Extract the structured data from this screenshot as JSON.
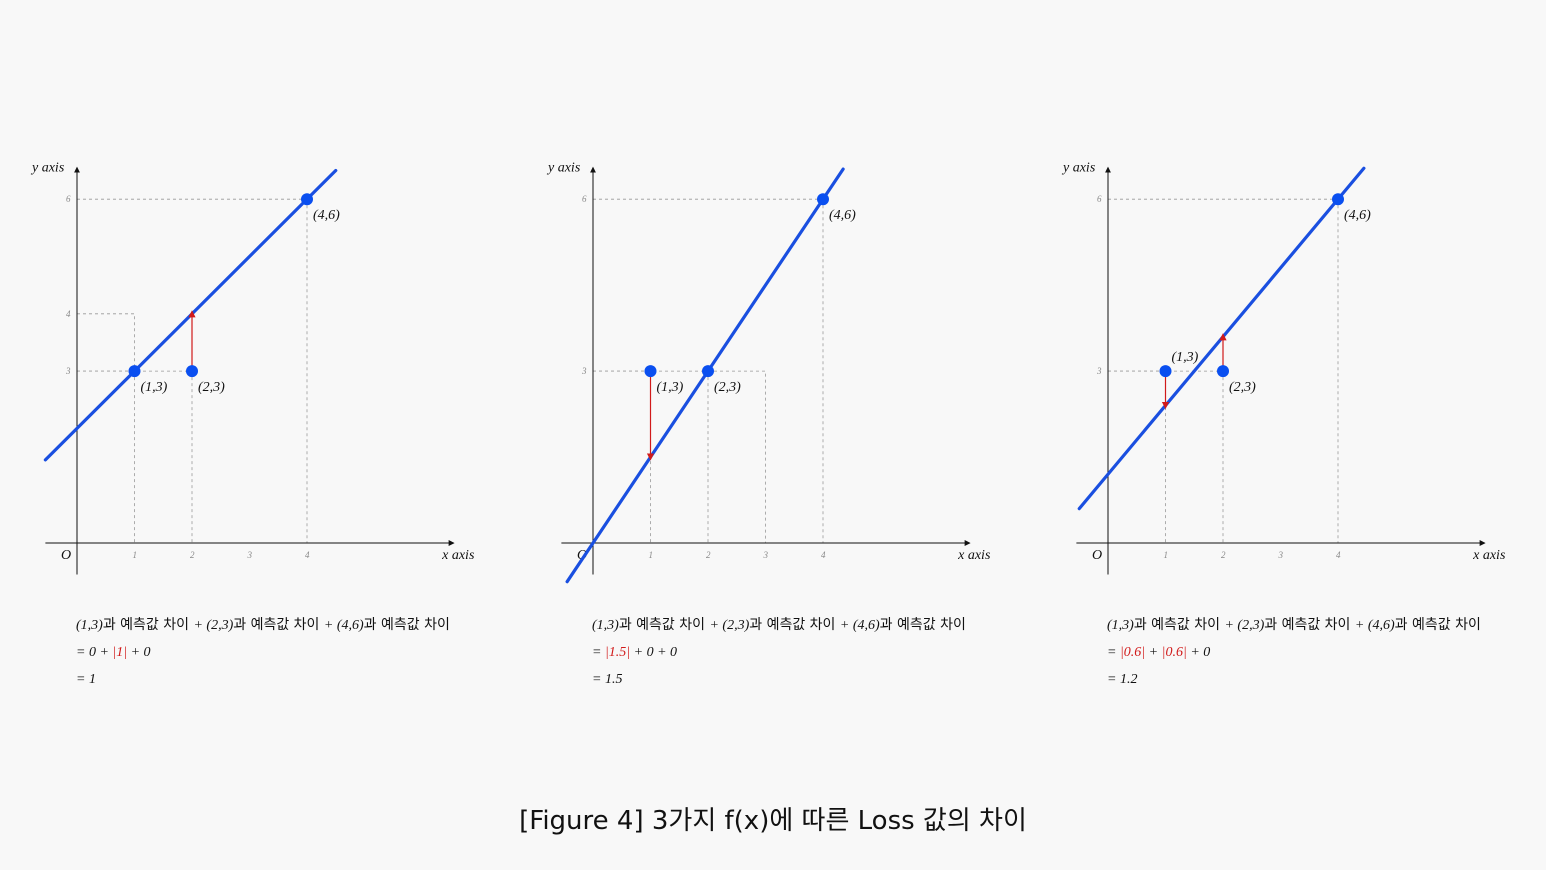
{
  "caption": "[Figure 4] 3가지 f(x)에 따른 Loss 값의 차이",
  "colors": {
    "line": "#1a4fe0",
    "point": "#0a4ff0",
    "arrow": "#d11a1a",
    "grid": "#999999"
  },
  "chart_data": [
    {
      "type": "line",
      "xlabel": "x axis",
      "ylabel": "y axis",
      "origin_label": "O",
      "xlim": [
        -0.55,
        6.55
      ],
      "ylim": [
        -0.55,
        6.55
      ],
      "grid": false,
      "x_ticks": [
        "1",
        "2",
        "3",
        "4"
      ],
      "y_ticks": [
        "3",
        "4",
        "6"
      ],
      "points": [
        {
          "x": 1,
          "y": 3,
          "label": "(1,3)"
        },
        {
          "x": 2,
          "y": 3,
          "label": "(2,3)"
        },
        {
          "x": 4,
          "y": 6,
          "label": "(4,6)"
        }
      ],
      "fitted_line": {
        "slope": 1,
        "intercept": 2,
        "x_range": [
          -0.55,
          4.5
        ]
      },
      "residual_arrows": [
        {
          "x": 2,
          "from": 3,
          "to": 4
        }
      ],
      "equation": {
        "line1": [
          {
            "t": "(1,3)",
            "s": "it"
          },
          {
            "t": "과 예측값 차이 ",
            "s": "ko"
          },
          {
            "t": "+ ",
            "s": "it"
          },
          {
            "t": "(2,3)",
            "s": "it"
          },
          {
            "t": "과 예측값 차이 ",
            "s": "ko"
          },
          {
            "t": "+ ",
            "s": "it"
          },
          {
            "t": "(4,6)",
            "s": "it"
          },
          {
            "t": "과 예측값 차이",
            "s": "ko"
          }
        ],
        "line2": [
          {
            "t": "= 0 + ",
            "s": "it"
          },
          {
            "t": "|1|",
            "s": "red"
          },
          {
            "t": " + 0",
            "s": "it"
          }
        ],
        "line3": "= 1"
      }
    },
    {
      "type": "line",
      "xlabel": "x axis",
      "ylabel": "y axis",
      "origin_label": "O",
      "xlim": [
        -0.55,
        6.55
      ],
      "ylim": [
        -0.55,
        6.55
      ],
      "grid": false,
      "x_ticks": [
        "1",
        "2",
        "3",
        "4"
      ],
      "y_ticks": [
        "3",
        "6"
      ],
      "points": [
        {
          "x": 1,
          "y": 3,
          "label": "(1,3)"
        },
        {
          "x": 2,
          "y": 3,
          "label": "(2,3)"
        },
        {
          "x": 4,
          "y": 6,
          "label": "(4,6)"
        }
      ],
      "fitted_line": {
        "slope": 1.5,
        "intercept": 0,
        "x_range": [
          -0.45,
          4.35
        ]
      },
      "residual_arrows": [
        {
          "x": 1,
          "from": 3,
          "to": 1.5
        }
      ],
      "equation": {
        "line1": [
          {
            "t": "(1,3)",
            "s": "it"
          },
          {
            "t": "과 예측값 차이 ",
            "s": "ko"
          },
          {
            "t": "+ ",
            "s": "it"
          },
          {
            "t": "(2,3)",
            "s": "it"
          },
          {
            "t": "과 예측값 차이 ",
            "s": "ko"
          },
          {
            "t": "+ ",
            "s": "it"
          },
          {
            "t": "(4,6)",
            "s": "it"
          },
          {
            "t": "과 예측값 차이",
            "s": "ko"
          }
        ],
        "line2": [
          {
            "t": "= ",
            "s": "it"
          },
          {
            "t": "|1.5|",
            "s": "red"
          },
          {
            "t": " + 0 + 0",
            "s": "it"
          }
        ],
        "line3": "= 1.5"
      }
    },
    {
      "type": "line",
      "xlabel": "x axis",
      "ylabel": "y axis",
      "origin_label": "O",
      "xlim": [
        -0.55,
        6.55
      ],
      "ylim": [
        -0.55,
        6.55
      ],
      "grid": false,
      "x_ticks": [
        "1",
        "2",
        "3",
        "4"
      ],
      "y_ticks": [
        "3",
        "6"
      ],
      "points": [
        {
          "x": 1,
          "y": 3,
          "label": "(1,3)"
        },
        {
          "x": 2,
          "y": 3,
          "label": "(2,3)"
        },
        {
          "x": 4,
          "y": 6,
          "label": "(4,6)"
        }
      ],
      "fitted_line": {
        "slope": 1.2,
        "intercept": 1.2,
        "x_range": [
          -0.5,
          4.45
        ]
      },
      "residual_arrows": [
        {
          "x": 1,
          "from": 3,
          "to": 2.4
        },
        {
          "x": 2,
          "from": 3,
          "to": 3.6
        }
      ],
      "equation": {
        "line1": [
          {
            "t": "(1,3)",
            "s": "it"
          },
          {
            "t": "과 예측값 차이 ",
            "s": "ko"
          },
          {
            "t": "+ ",
            "s": "it"
          },
          {
            "t": "(2,3)",
            "s": "it"
          },
          {
            "t": "과 예측값 차이 ",
            "s": "ko"
          },
          {
            "t": "+ ",
            "s": "it"
          },
          {
            "t": "(4,6)",
            "s": "it"
          },
          {
            "t": "과 예측값 차이",
            "s": "ko"
          }
        ],
        "line2": [
          {
            "t": "= ",
            "s": "it"
          },
          {
            "t": "|0.6|",
            "s": "red"
          },
          {
            "t": " + ",
            "s": "it"
          },
          {
            "t": "|0.6|",
            "s": "red"
          },
          {
            "t": " + 0",
            "s": "it"
          }
        ],
        "line3": "= 1.2"
      }
    }
  ]
}
